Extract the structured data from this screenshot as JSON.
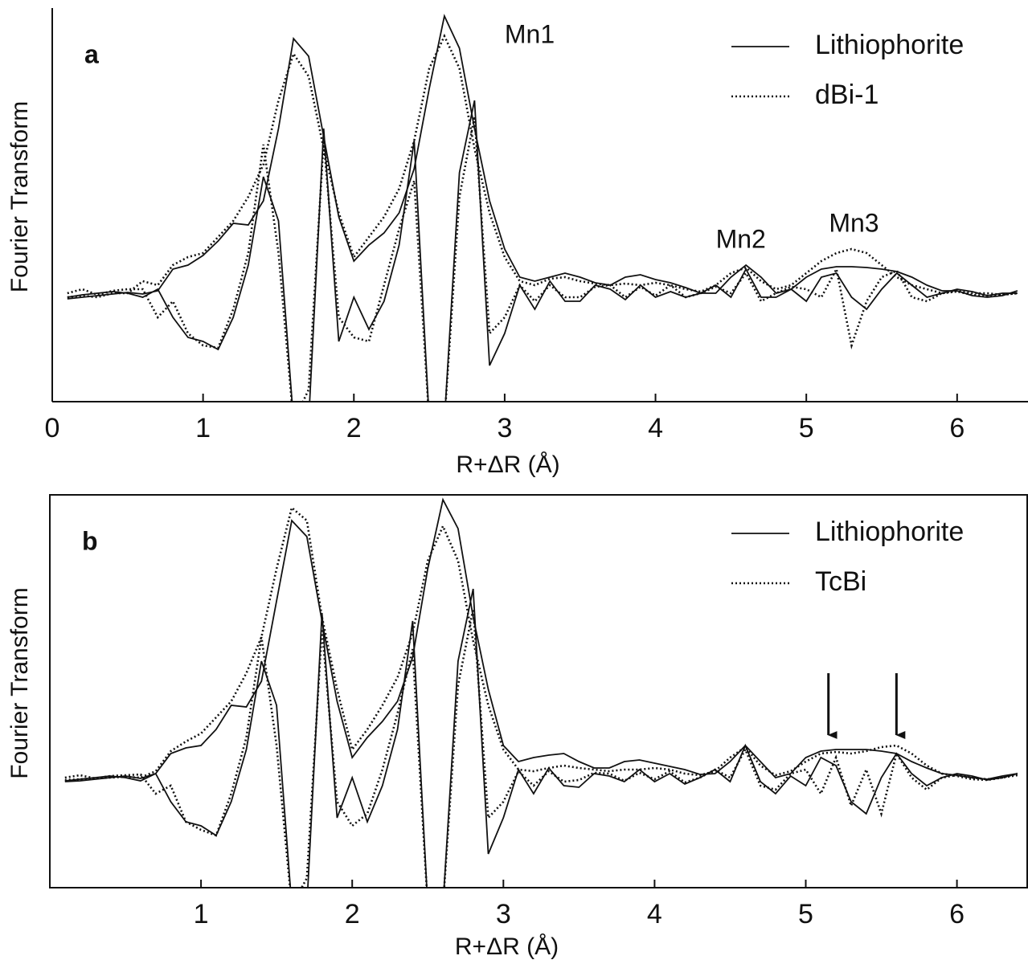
{
  "chart_data": [
    {
      "type": "line",
      "panel_label": "a",
      "ylabel": "Fourier Transform",
      "xlabel": "R+ΔR (Å)",
      "xlim": [
        0,
        6.47
      ],
      "ylim": [
        -1.35,
        3.55
      ],
      "xticks": [
        0,
        1,
        2,
        3,
        4,
        5,
        6
      ],
      "legend": "top-right",
      "x": [
        0.1,
        0.2,
        0.3,
        0.4,
        0.5,
        0.6,
        0.7,
        0.8,
        0.9,
        1.0,
        1.1,
        1.2,
        1.3,
        1.4,
        1.5,
        1.6,
        1.7,
        1.8,
        1.9,
        2.0,
        2.1,
        2.2,
        2.3,
        2.4,
        2.5,
        2.6,
        2.7,
        2.8,
        2.9,
        3.0,
        3.1,
        3.2,
        3.3,
        3.4,
        3.5,
        3.6,
        3.7,
        3.8,
        3.9,
        4.0,
        4.1,
        4.2,
        4.3,
        4.4,
        4.5,
        4.6,
        4.7,
        4.8,
        4.9,
        5.0,
        5.1,
        5.2,
        5.3,
        5.4,
        5.5,
        5.6,
        5.7,
        5.8,
        5.9,
        6.0,
        6.1,
        6.2,
        6.3,
        6.4
      ],
      "series": [
        {
          "name": "Lithiophorite",
          "style": "solid",
          "color": "#111111",
          "values": [
            -0.07,
            -0.05,
            -0.03,
            -0.01,
            0.01,
            -0.01,
            0.03,
            0.3,
            0.35,
            0.47,
            0.65,
            0.87,
            0.85,
            1.15,
            2.05,
            3.17,
            2.95,
            1.95,
            0.95,
            0.4,
            0.6,
            0.75,
            1.0,
            1.55,
            2.55,
            3.45,
            3.05,
            2.05,
            1.15,
            0.55,
            0.2,
            0.15,
            0.2,
            0.25,
            0.2,
            0.13,
            0.1,
            0.2,
            0.23,
            0.17,
            0.13,
            0.07,
            0,
            0,
            0.2,
            0.35,
            0.2,
            0,
            0.05,
            0.2,
            0.3,
            0.33,
            0.33,
            0.32,
            0.3,
            0.27,
            0.2,
            0.1,
            0.03,
            0.03,
            -0.03,
            -0.05,
            -0.03,
            0.03
          ],
          "imag_values": [
            -0.05,
            -0.02,
            0,
            0.02,
            0,
            -0.05,
            0.05,
            -0.3,
            -0.55,
            -0.6,
            -0.7,
            -0.3,
            0.35,
            1.45,
            0.9,
            -1.6,
            -1.6,
            2.05,
            -0.6,
            -0.05,
            -0.45,
            -0.1,
            0.6,
            1.9,
            -1.6,
            -1.6,
            1.5,
            2.4,
            -0.9,
            -0.5,
            0.1,
            -0.2,
            0.15,
            -0.1,
            -0.1,
            0.1,
            0.05,
            -0.08,
            0.1,
            -0.05,
            0.02,
            -0.05,
            0,
            0.1,
            -0.05,
            0.3,
            -0.05,
            -0.05,
            0.05,
            -0.1,
            0.2,
            0.25,
            -0.05,
            -0.2,
            0.05,
            0.25,
            0.1,
            -0.05,
            0,
            0.05,
            0.02,
            -0.03,
            0,
            0
          ]
        },
        {
          "name": "dBi-1",
          "style": "dotted",
          "color": "#111111",
          "values": [
            -0.05,
            -0.03,
            -0.05,
            0,
            0,
            0.15,
            0.1,
            0.35,
            0.45,
            0.5,
            0.7,
            0.9,
            1.2,
            1.6,
            2.4,
            2.98,
            2.7,
            1.8,
            1.0,
            0.45,
            0.7,
            0.95,
            1.3,
            1.9,
            2.8,
            3.2,
            2.8,
            1.8,
            1.0,
            0.45,
            0.15,
            0.1,
            0.18,
            0.2,
            0.15,
            0.12,
            0.1,
            0.12,
            0.1,
            0.13,
            0.1,
            0.05,
            0.02,
            0.1,
            0.25,
            0.32,
            0.15,
            0.05,
            0.1,
            0.25,
            0.4,
            0.5,
            0.55,
            0.5,
            0.35,
            0.2,
            0.1,
            0.05,
            0,
            0.02,
            -0.02,
            -0.03,
            -0.02,
            0
          ],
          "imag_values": [
            0,
            0.05,
            -0.02,
            0.03,
            0.05,
            0.05,
            -0.3,
            -0.1,
            -0.5,
            -0.65,
            -0.68,
            -0.2,
            0.5,
            1.85,
            0.5,
            -1.6,
            -1.2,
            1.9,
            -0.3,
            -0.55,
            -0.6,
            0.1,
            0.8,
            1.4,
            -1.6,
            -1.6,
            1.2,
            2.2,
            -0.5,
            -0.3,
            0.1,
            -0.1,
            0.1,
            -0.05,
            -0.05,
            0.08,
            0.1,
            -0.05,
            0.08,
            -0.03,
            0.1,
            -0.05,
            0,
            0.08,
            0.0,
            0.25,
            -0.1,
            0,
            0.08,
            0.05,
            -0.05,
            0.3,
            -0.65,
            -0.1,
            0.2,
            0.28,
            -0.05,
            -0.1,
            0,
            0.03,
            0,
            0,
            -0.02,
            0
          ]
        }
      ],
      "annotations": [
        {
          "text": "Mn1",
          "x": 3.0,
          "y": 3.2
        },
        {
          "text": "Mn2",
          "x": 4.4,
          "y": 0.65
        },
        {
          "text": "Mn3",
          "x": 5.15,
          "y": 0.85
        }
      ]
    },
    {
      "type": "line",
      "panel_label": "b",
      "ylabel": "Fourier Transform",
      "xlabel": "R+ΔR (Å)",
      "xlim": [
        0,
        6.47
      ],
      "ylim": [
        -1.37,
        3.52
      ],
      "xticks": [
        1,
        2,
        3,
        4,
        5,
        6
      ],
      "legend": "top-right",
      "frame": true,
      "x": [
        0.1,
        0.2,
        0.3,
        0.4,
        0.5,
        0.6,
        0.7,
        0.8,
        0.9,
        1.0,
        1.1,
        1.2,
        1.3,
        1.4,
        1.5,
        1.6,
        1.7,
        1.8,
        1.9,
        2.0,
        2.1,
        2.2,
        2.3,
        2.4,
        2.5,
        2.6,
        2.7,
        2.8,
        2.9,
        3.0,
        3.1,
        3.2,
        3.3,
        3.4,
        3.5,
        3.6,
        3.7,
        3.8,
        3.9,
        4.0,
        4.1,
        4.2,
        4.3,
        4.4,
        4.5,
        4.6,
        4.7,
        4.8,
        4.9,
        5.0,
        5.1,
        5.2,
        5.3,
        5.4,
        5.5,
        5.6,
        5.7,
        5.8,
        5.9,
        6.0,
        6.1,
        6.2,
        6.3,
        6.4
      ],
      "series": [
        {
          "name": "Lithiophorite",
          "style": "solid",
          "color": "#111111",
          "values": [
            -0.05,
            -0.04,
            -0.02,
            0,
            0.02,
            -0.01,
            0.05,
            0.3,
            0.37,
            0.4,
            0.6,
            0.9,
            0.88,
            1.2,
            2.2,
            3.2,
            3.0,
            1.95,
            0.95,
            0.25,
            0.5,
            0.7,
            0.95,
            1.5,
            2.6,
            3.46,
            3.1,
            2.0,
            1.1,
            0.4,
            0.2,
            0.25,
            0.28,
            0.3,
            0.2,
            0.12,
            0.12,
            0.2,
            0.22,
            0.18,
            0.14,
            0.1,
            0.04,
            0.05,
            0.2,
            0.4,
            0.2,
            0.0,
            0.05,
            0.25,
            0.33,
            0.35,
            0.35,
            0.35,
            0.33,
            0.3,
            0.2,
            0.12,
            0.05,
            0.03,
            0.0,
            -0.02,
            0.02,
            0.05
          ],
          "imag_values": [
            -0.04,
            -0.02,
            0,
            0.02,
            0,
            -0.04,
            0.05,
            -0.3,
            -0.55,
            -0.6,
            -0.72,
            -0.3,
            0.35,
            1.45,
            0.9,
            -1.6,
            -1.6,
            2.05,
            -0.5,
            0.0,
            -0.55,
            -0.1,
            0.6,
            1.95,
            -1.6,
            -1.6,
            1.45,
            2.35,
            -0.95,
            -0.5,
            0.1,
            -0.2,
            0.12,
            -0.1,
            -0.12,
            0.05,
            0.02,
            -0.05,
            0.1,
            -0.05,
            0.05,
            -0.08,
            0,
            0.1,
            -0.05,
            0.4,
            -0.05,
            -0.2,
            0.02,
            -0.1,
            0.25,
            0.15,
            -0.3,
            -0.45,
            0.0,
            0.3,
            0.05,
            -0.1,
            0,
            0.05,
            0.02,
            -0.03,
            0,
            0.05
          ]
        },
        {
          "name": "TcBi",
          "style": "dotted",
          "color": "#111111",
          "values": [
            -0.03,
            -0.02,
            -0.01,
            0.0,
            0.01,
            0.0,
            0.08,
            0.33,
            0.45,
            0.55,
            0.75,
            0.95,
            1.3,
            1.75,
            2.6,
            3.36,
            3.2,
            2.0,
            1.1,
            0.35,
            0.6,
            0.9,
            1.25,
            1.8,
            2.7,
            3.13,
            2.7,
            1.7,
            0.9,
            0.35,
            0.1,
            0.08,
            0.12,
            0.15,
            0.12,
            0.1,
            0.08,
            0.1,
            0.1,
            0.12,
            0.1,
            0.05,
            0.03,
            0.08,
            0.25,
            0.38,
            0.15,
            0.03,
            0.08,
            0.2,
            0.3,
            0.32,
            0.3,
            0.33,
            0.38,
            0.4,
            0.3,
            0.15,
            0.05,
            0.02,
            -0.02,
            -0.03,
            0,
            0.05
          ],
          "imag_values": [
            0,
            0.03,
            -0.01,
            0.02,
            0.03,
            0.04,
            -0.2,
            -0.1,
            -0.55,
            -0.65,
            -0.72,
            -0.2,
            0.5,
            1.75,
            0.4,
            -1.6,
            -1.25,
            1.85,
            -0.3,
            -0.6,
            -0.45,
            0.1,
            0.8,
            1.6,
            -1.6,
            -1.6,
            1.15,
            2.1,
            -0.5,
            -0.3,
            0.08,
            -0.1,
            0.08,
            -0.05,
            -0.03,
            0.06,
            0.05,
            -0.04,
            0.06,
            -0.02,
            0.08,
            -0.06,
            0.0,
            0.1,
            0.0,
            0.35,
            -0.1,
            -0.15,
            0.05,
            0.1,
            -0.2,
            0.25,
            -0.35,
            0.1,
            -0.45,
            0.3,
            0.0,
            -0.15,
            0.0,
            0.03,
            0.0,
            -0.02,
            0.0,
            0.03
          ]
        }
      ],
      "arrow_x": [
        5.15,
        5.6
      ]
    }
  ]
}
